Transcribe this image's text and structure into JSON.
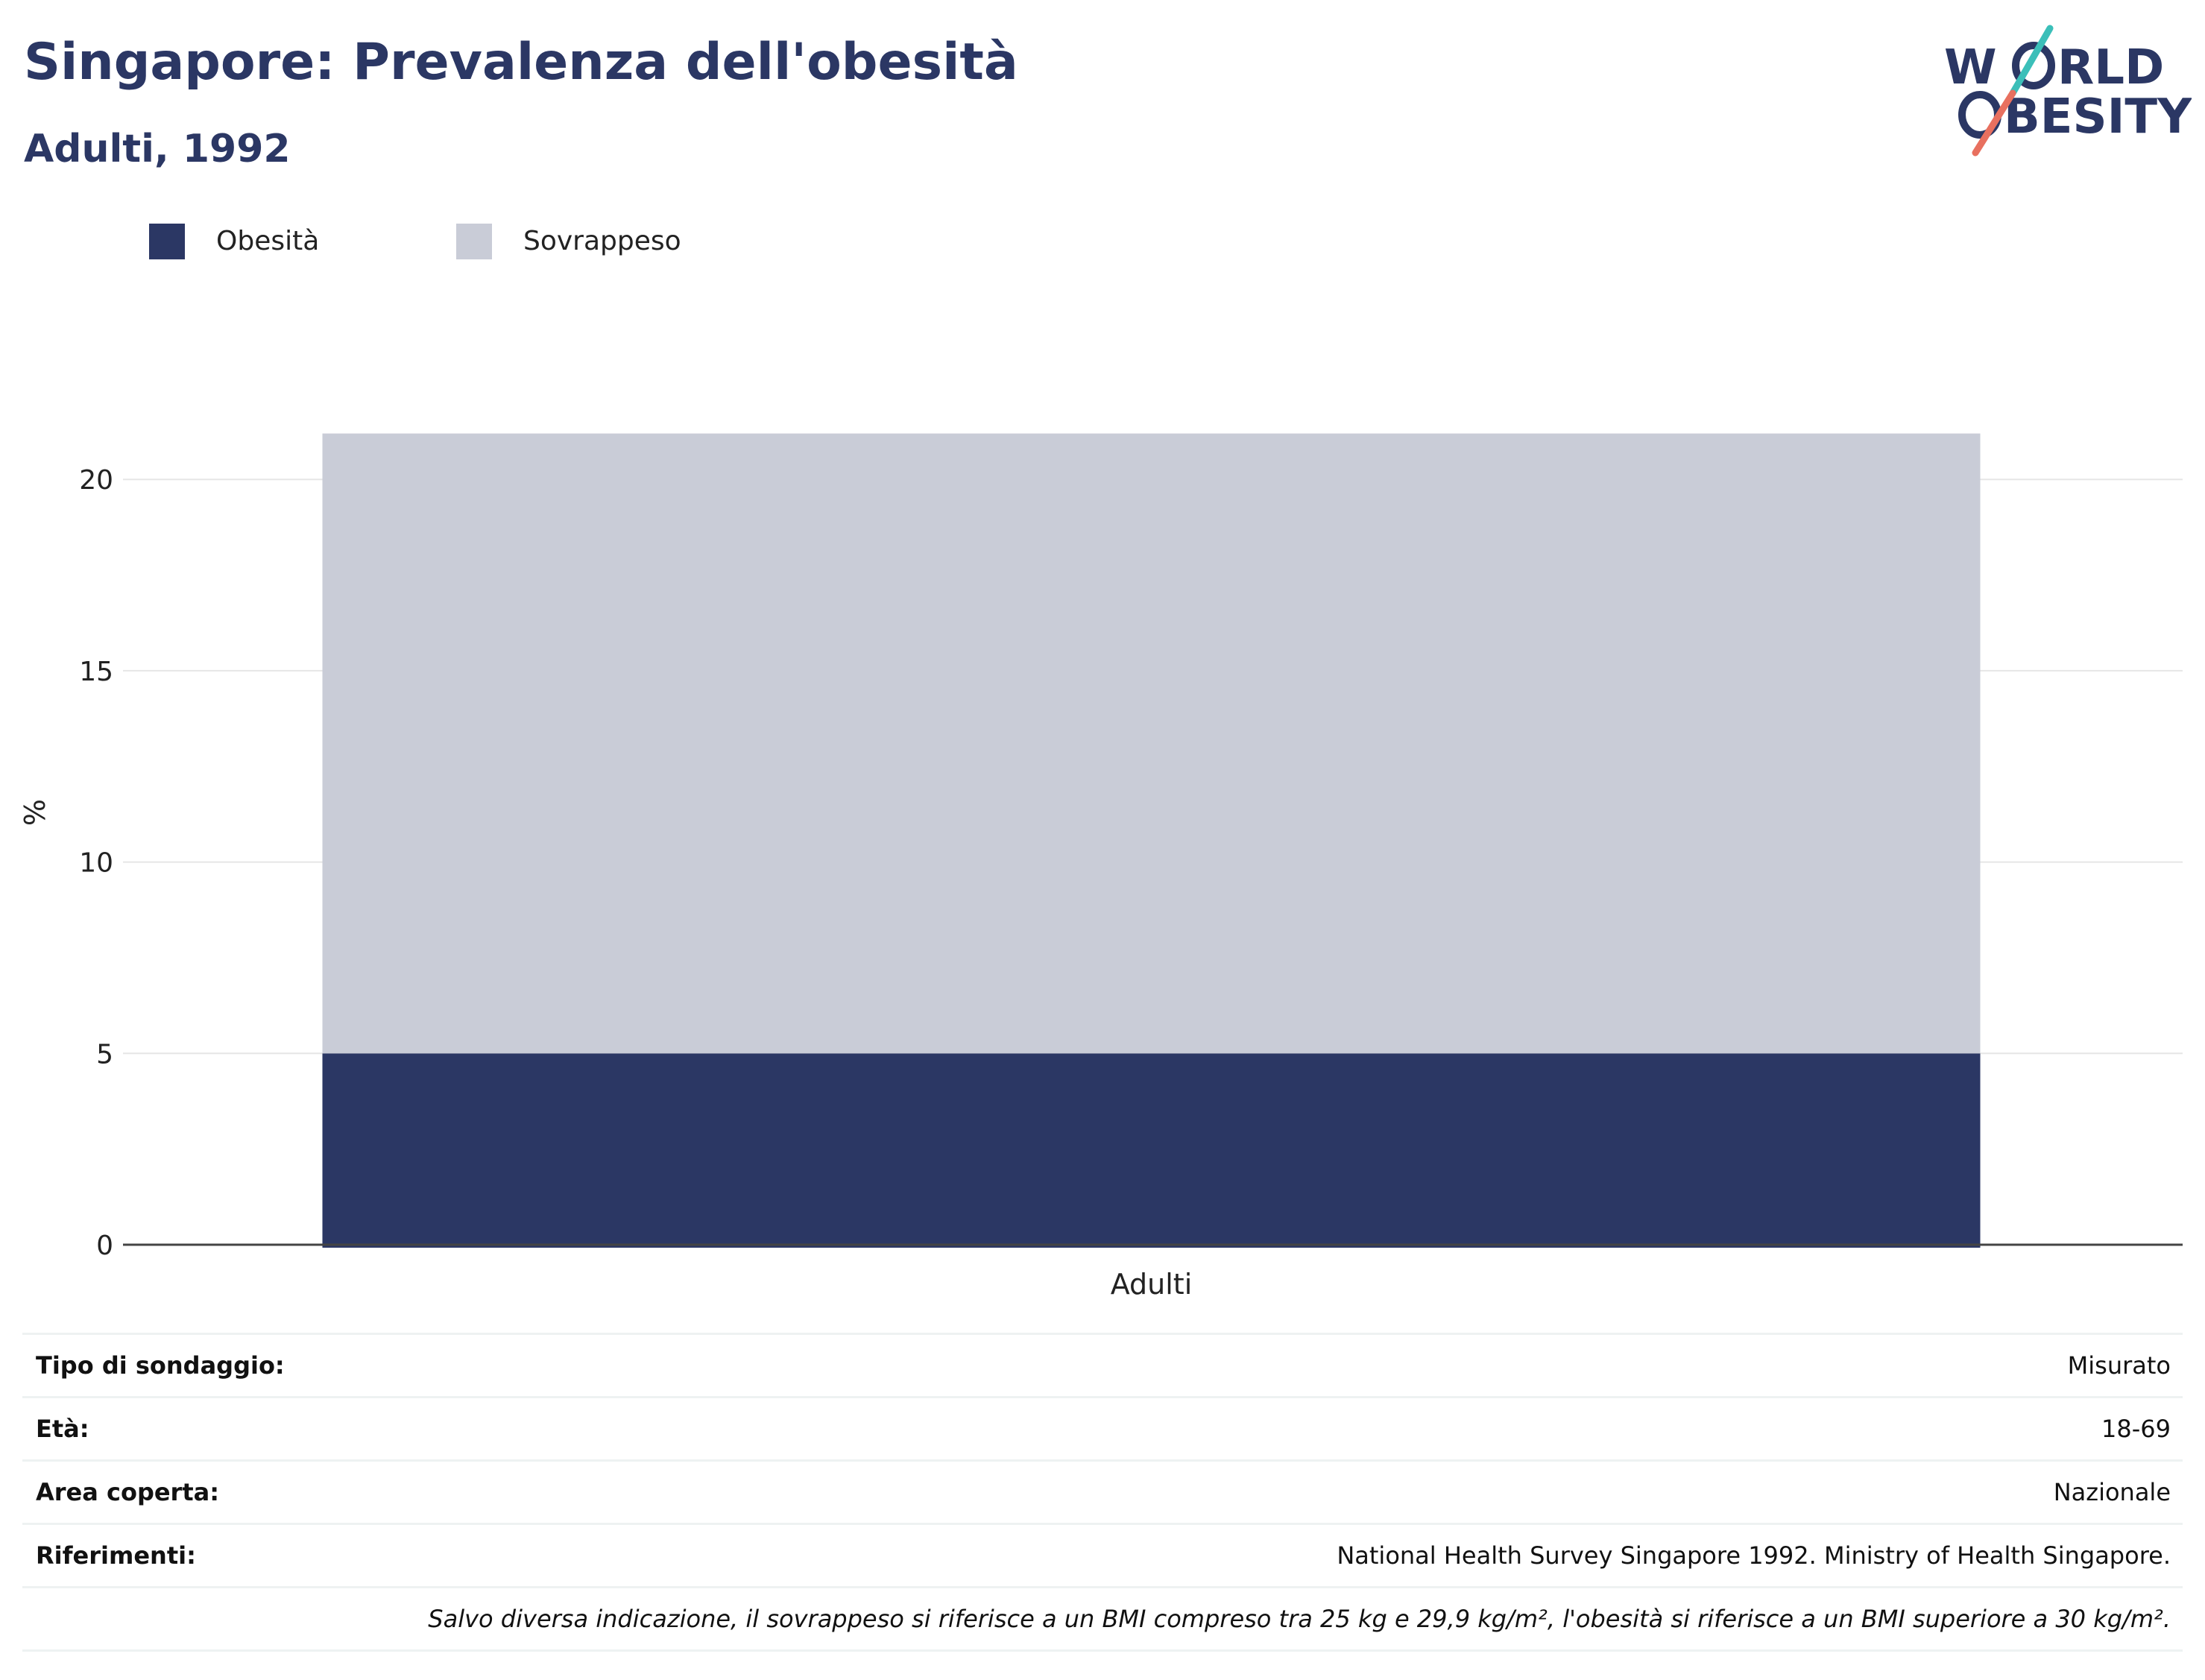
{
  "header": {
    "title": "Singapore: Prevalenza dell'obesità",
    "subtitle": "Adulti, 1992"
  },
  "logo": {
    "line1": "W",
    "line1b": "RLD",
    "line2": "BESITY",
    "colors": {
      "text": "#2b3764",
      "slash_top": "#3bbfb9",
      "slash_bottom": "#e8705f"
    }
  },
  "colors": {
    "obesity": "#2b3764",
    "overweight": "#c9ccd7",
    "grid": "#e6e6e6",
    "axis": "#444444"
  },
  "chart_data": {
    "type": "bar",
    "stacked": true,
    "categories": [
      "Adulti"
    ],
    "series": [
      {
        "name": "Obesità",
        "values": [
          5.0
        ]
      },
      {
        "name": "Sovrappeso",
        "values": [
          16.2
        ]
      }
    ],
    "ylabel": "%",
    "ylim": [
      0,
      22.4
    ],
    "yticks": [
      0,
      5,
      10,
      15,
      20
    ],
    "grid": true,
    "legend": "top-left"
  },
  "info": {
    "rows": [
      {
        "label": "Tipo di sondaggio:",
        "value": "Misurato"
      },
      {
        "label": "Età:",
        "value": "18-69"
      },
      {
        "label": "Area coperta:",
        "value": "Nazionale"
      },
      {
        "label": "Riferimenti:",
        "value": "National Health Survey Singapore 1992. Ministry of Health Singapore."
      }
    ],
    "note": "Salvo diversa indicazione, il sovrappeso si riferisce a un BMI compreso tra 25 kg e 29,9 kg/m², l'obesità si riferisce a un BMI superiore a 30 kg/m²."
  }
}
